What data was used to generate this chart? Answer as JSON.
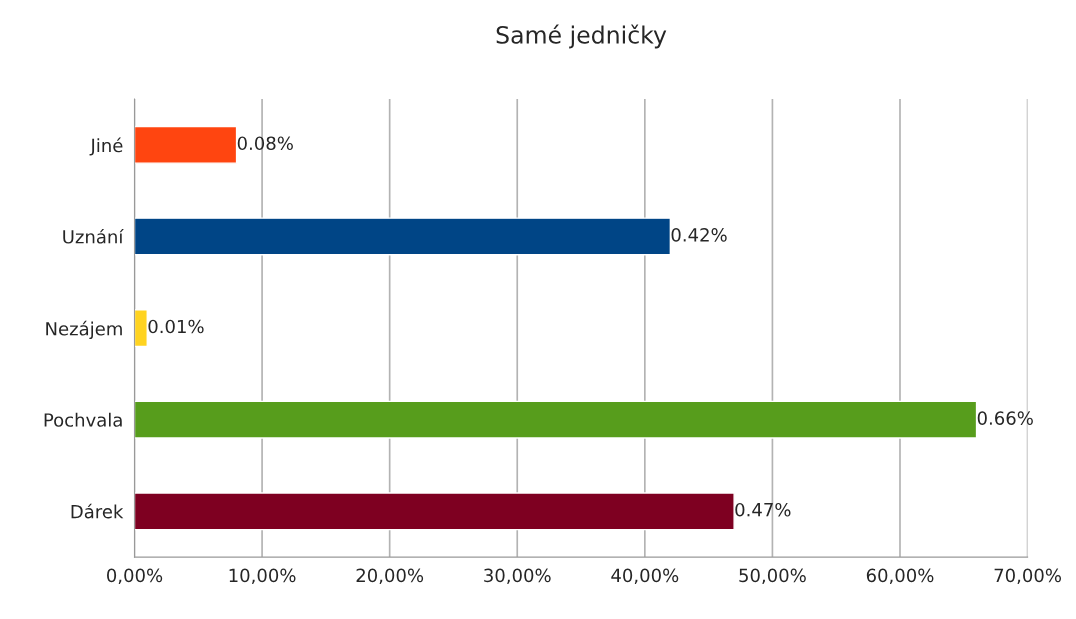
{
  "chart_data": {
    "type": "bar",
    "orientation": "horizontal",
    "title": "Samé jedničky",
    "categories": [
      "Jiné",
      "Uznání",
      "Nezájem",
      "Pochvala",
      "Dárek"
    ],
    "values": [
      0.08,
      0.42,
      0.01,
      0.66,
      0.47
    ],
    "colors": [
      "#ff4510",
      "#004586",
      "#ffd320",
      "#579d1c",
      "#7e0021"
    ],
    "value_labels": [
      "0.08%",
      "0.42%",
      "0.01%",
      "0.66%",
      "0.47%"
    ],
    "xlim": [
      0,
      0.7
    ],
    "xticks": [
      {
        "value": 0,
        "label": "0,00%"
      },
      {
        "value": 0.1,
        "label": "10,00%"
      },
      {
        "value": 0.2,
        "label": "20,00%"
      },
      {
        "value": 0.3,
        "label": "30,00%"
      },
      {
        "value": 0.4,
        "label": "40,00%"
      },
      {
        "value": 0.5,
        "label": "50,00%"
      },
      {
        "value": 0.6,
        "label": "60,00%"
      },
      {
        "value": 0.7,
        "label": "70,00%"
      }
    ],
    "grid": "x"
  }
}
